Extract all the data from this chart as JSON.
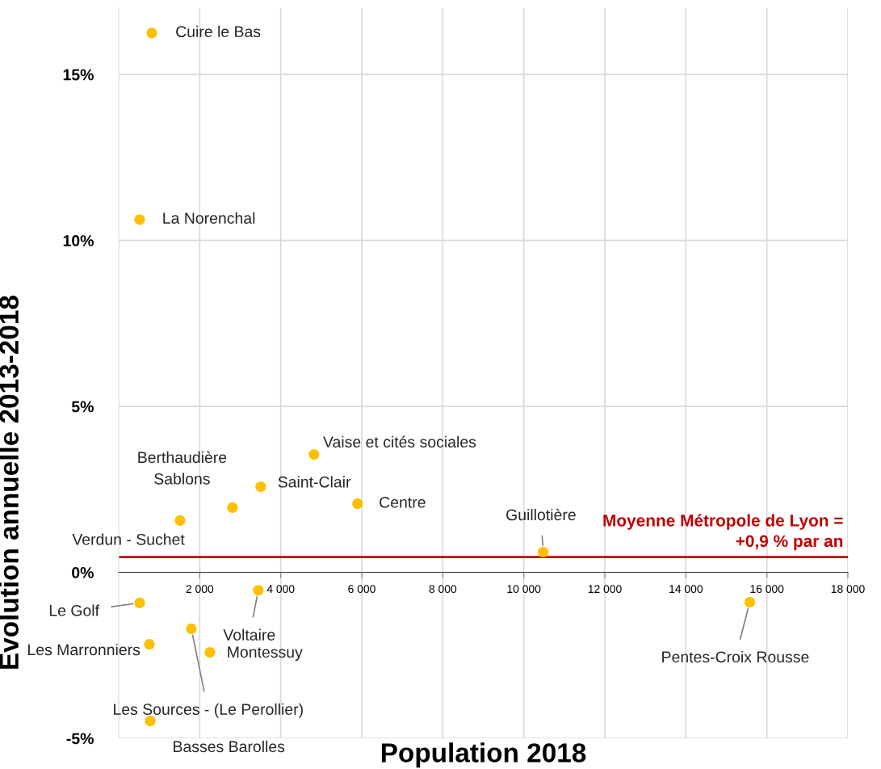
{
  "chart_data": {
    "type": "scatter",
    "xlabel": "Population 2018",
    "ylabel": "Evolution annuelle 2013-2018",
    "series": [
      {
        "color": "#ffc000",
        "x": [
          817,
          518,
          4821,
          3506,
          2809,
          5896,
          1514,
          10478,
          3446,
          518,
          15578,
          1793,
          757,
          2251,
          777
        ],
        "values": [
          16.25,
          10.63,
          3.55,
          2.58,
          1.95,
          2.07,
          1.56,
          0.61,
          -0.54,
          -0.92,
          -0.9,
          -1.7,
          -2.17,
          -2.41,
          -4.48
        ]
      }
    ],
    "annotations": [
      {
        "text": "Cuire le Bas",
        "x": 817,
        "y": 16.25
      },
      {
        "text": "La Norenchal",
        "x": 518,
        "y": 10.63
      },
      {
        "text": "Vaise et cités sociales",
        "x": 4821,
        "y": 3.55
      },
      {
        "text": "Saint-Clair",
        "x": 3506,
        "y": 2.58
      },
      {
        "text": "Berthaudière\nSablons",
        "x": 2809,
        "y": 1.95
      },
      {
        "text": "Centre",
        "x": 5896,
        "y": 2.07
      },
      {
        "text": "Verdun - Suchet",
        "x": 1514,
        "y": 1.56
      },
      {
        "text": "Guillotière",
        "x": 10478,
        "y": 0.61
      },
      {
        "text": "Voltaire",
        "x": 3446,
        "y": -0.54
      },
      {
        "text": "Le Golf",
        "x": 518,
        "y": -0.92
      },
      {
        "text": "Pentes-Croix Rousse",
        "x": 15578,
        "y": -0.9
      },
      {
        "text": "Les Sources - (Le Perollier)",
        "x": 1793,
        "y": -1.7
      },
      {
        "text": "Les Marronniers",
        "x": 757,
        "y": -2.17
      },
      {
        "text": "Montessuy",
        "x": 2251,
        "y": -2.41
      },
      {
        "text": "Basses Barolles",
        "x": 777,
        "y": -4.48
      }
    ],
    "ref_lines": [
      {
        "axis": "y",
        "value": 0.46,
        "label": "Moyenne Métropole de Lyon =\n+0,9 % par an",
        "color": "#c00000"
      }
    ],
    "xlim": [
      0,
      18000
    ],
    "ylim": [
      -5,
      17
    ],
    "xticks": [
      {
        "value": 2000,
        "label": "2 000"
      },
      {
        "value": 4000,
        "label": "4 000"
      },
      {
        "value": 6000,
        "label": "6 000"
      },
      {
        "value": 8000,
        "label": "8 000"
      },
      {
        "value": 10000,
        "label": "10 000"
      },
      {
        "value": 12000,
        "label": "12 000"
      },
      {
        "value": 14000,
        "label": "14 000"
      },
      {
        "value": 16000,
        "label": "16 000"
      },
      {
        "value": 18000,
        "label": "18 000"
      }
    ],
    "yticks": [
      {
        "value": -5,
        "label": "-5%"
      },
      {
        "value": 0,
        "label": "0%"
      },
      {
        "value": 5,
        "label": "5%"
      },
      {
        "value": 10,
        "label": "10%"
      },
      {
        "value": 15,
        "label": "15%"
      }
    ],
    "grid": true,
    "marker": "circle"
  }
}
